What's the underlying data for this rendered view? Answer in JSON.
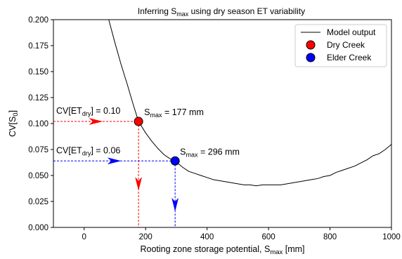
{
  "chart_data": {
    "type": "line",
    "title": {
      "base": "Inferring S",
      "sub": "max",
      "rest": " using dry season ET variability"
    },
    "xlabel": {
      "base": "Rooting zone storage potential, S",
      "sub": "max",
      "rest": " [mm]"
    },
    "ylabel": {
      "base": "CV[S",
      "sub": "0",
      "rest": "]"
    },
    "xlim": [
      -100,
      1000
    ],
    "ylim": [
      0,
      0.2
    ],
    "x_ticks": [
      0,
      200,
      400,
      600,
      800,
      1000
    ],
    "x_tick_labels": [
      "0",
      "200",
      "400",
      "600",
      "800",
      "1000"
    ],
    "y_ticks": [
      0,
      0.025,
      0.05,
      0.075,
      0.1,
      0.125,
      0.15,
      0.175,
      0.2
    ],
    "y_tick_labels": [
      "0.000",
      "0.025",
      "0.050",
      "0.075",
      "0.100",
      "0.125",
      "0.150",
      "0.175",
      "0.200"
    ],
    "grid": false,
    "legend_position": "top-right",
    "series": [
      {
        "name": "Model output",
        "kind": "line",
        "color": "#000000",
        "x": [
          80,
          100,
          120,
          140,
          160,
          177,
          200,
          220,
          240,
          260,
          280,
          296,
          320,
          340,
          360,
          380,
          400,
          420,
          440,
          460,
          480,
          500,
          520,
          540,
          560,
          580,
          600,
          620,
          640,
          660,
          680,
          700,
          720,
          740,
          760,
          780,
          800,
          820,
          840,
          860,
          880,
          900,
          920,
          940,
          960,
          980,
          1000
        ],
        "y": [
          0.2,
          0.178,
          0.157,
          0.138,
          0.118,
          0.102,
          0.091,
          0.083,
          0.076,
          0.07,
          0.066,
          0.064,
          0.058,
          0.054,
          0.052,
          0.05,
          0.048,
          0.046,
          0.045,
          0.044,
          0.043,
          0.042,
          0.041,
          0.041,
          0.04,
          0.041,
          0.041,
          0.041,
          0.041,
          0.042,
          0.043,
          0.044,
          0.045,
          0.046,
          0.047,
          0.049,
          0.05,
          0.053,
          0.055,
          0.057,
          0.059,
          0.062,
          0.065,
          0.069,
          0.071,
          0.075,
          0.08
        ]
      },
      {
        "name": "Dry Creek",
        "kind": "point",
        "color": "#ff0000",
        "x": 177,
        "y": 0.102
      },
      {
        "name": "Elder Creek",
        "kind": "point",
        "color": "#0000ff",
        "x": 296,
        "y": 0.064
      }
    ],
    "guides": [
      {
        "series": "Dry Creek",
        "color": "#ff0000",
        "x": 177,
        "y": 0.102,
        "h_arrow_x": 40,
        "v_arrow_y": 0.042
      },
      {
        "series": "Elder Creek",
        "color": "#0000ff",
        "x": 296,
        "y": 0.064,
        "h_arrow_x": 100,
        "v_arrow_y": 0.022
      }
    ],
    "annotations": [
      {
        "id": "dry-cv",
        "base": "CV[ET",
        "sub": "dry",
        "rest": "] = 0.10",
        "anchor_x": -100,
        "anchor_y": 0.102
      },
      {
        "id": "dry-smax",
        "base": "S",
        "sub": "max",
        "rest": " = 177 mm",
        "anchor_x": 177,
        "anchor_y": 0.102
      },
      {
        "id": "elder-cv",
        "base": "CV[ET",
        "sub": "dry",
        "rest": "] = 0.06",
        "anchor_x": -100,
        "anchor_y": 0.064
      },
      {
        "id": "elder-smax",
        "base": "S",
        "sub": "max",
        "rest": " = 296 mm",
        "anchor_x": 296,
        "anchor_y": 0.064
      }
    ]
  }
}
